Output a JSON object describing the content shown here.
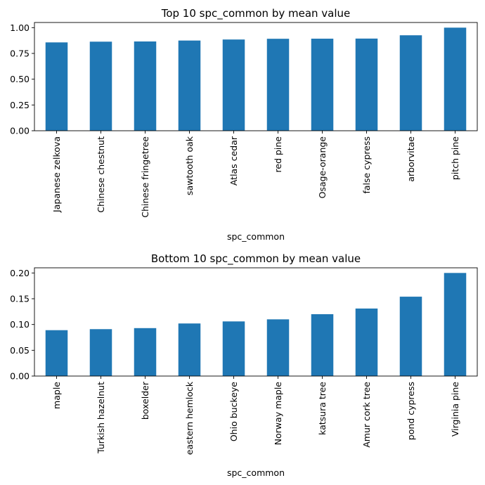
{
  "chart_data": [
    {
      "type": "bar",
      "title": "Top 10 spc_common by mean value",
      "xlabel": "spc_common",
      "ylabel": "",
      "ylim": [
        0,
        1.05
      ],
      "yticks": [
        "0.00",
        "0.25",
        "0.50",
        "0.75",
        "1.00"
      ],
      "ytick_values": [
        0,
        0.25,
        0.5,
        0.75,
        1.0
      ],
      "categories": [
        "Japanese zelkova",
        "Chinese chestnut",
        "Chinese fringetree",
        "sawtooth oak",
        "Atlas cedar",
        "red pine",
        "Osage-orange",
        "false cypress",
        "arborvitae",
        "pitch pine"
      ],
      "values": [
        0.857,
        0.864,
        0.866,
        0.875,
        0.885,
        0.892,
        0.893,
        0.894,
        0.926,
        1.0
      ],
      "bar_color": "#1f77b4",
      "grid": false
    },
    {
      "type": "bar",
      "title": "Bottom 10 spc_common by mean value",
      "xlabel": "spc_common",
      "ylabel": "",
      "ylim": [
        0,
        0.21
      ],
      "yticks": [
        "0.00",
        "0.05",
        "0.10",
        "0.15",
        "0.20"
      ],
      "ytick_values": [
        0,
        0.05,
        0.1,
        0.15,
        0.2
      ],
      "categories": [
        "maple",
        "Turkish hazelnut",
        "boxelder",
        "eastern hemlock",
        "Ohio buckeye",
        "Norway maple",
        "katsura tree",
        "Amur cork tree",
        "pond cypress",
        "Virginia pine"
      ],
      "values": [
        0.089,
        0.091,
        0.093,
        0.102,
        0.106,
        0.11,
        0.12,
        0.131,
        0.154,
        0.2
      ],
      "bar_color": "#1f77b4",
      "grid": false
    }
  ]
}
